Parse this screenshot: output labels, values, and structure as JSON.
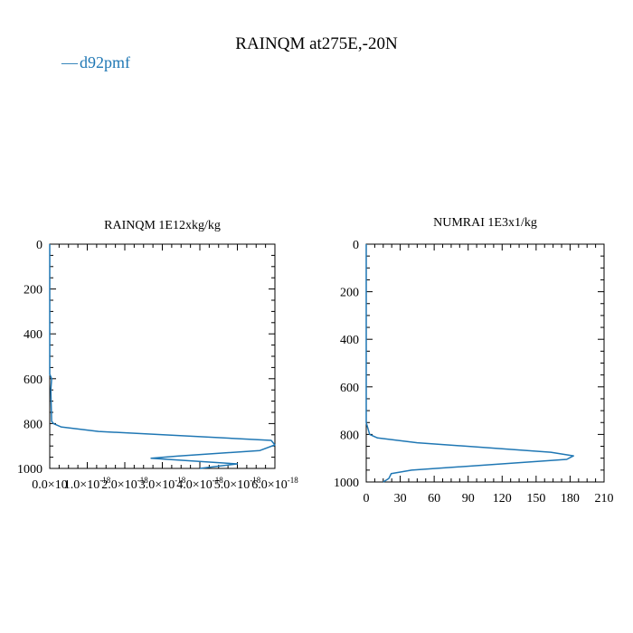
{
  "page": {
    "title": "RAINQM at275E,-20N"
  },
  "legend": {
    "entries": [
      {
        "marker": "—",
        "label": "d92pmf",
        "color": "#1f77b4"
      }
    ],
    "placement": "top-left"
  },
  "colors": {
    "series": "#1f77b4",
    "axis": "#000000",
    "text": "#000000"
  },
  "chart_data": [
    {
      "type": "line",
      "title": "RAINQM  1E12xkg/kg",
      "xlabel": "",
      "ylabel": "",
      "xlim": [
        0,
        6e-18
      ],
      "ylim": [
        1000,
        0
      ],
      "y_inverted": true,
      "grid": false,
      "x_tick_labels": [
        "0.0×10",
        "1.0×10",
        "2.0×10",
        "3.0×10",
        "4.0×10",
        "5.0×10",
        "6.0×10"
      ],
      "x_tick_exponents": [
        "",
        "-18",
        "-18",
        "-18",
        "-18",
        "-18",
        "-18"
      ],
      "x_ticks": [
        0,
        1e-18,
        2e-18,
        3e-18,
        4e-18,
        5e-18,
        6e-18
      ],
      "y_ticks": [
        0,
        200,
        400,
        600,
        800,
        1000
      ],
      "y_tick_labels": [
        "0",
        "200",
        "400",
        "600",
        "800",
        "1000"
      ],
      "series": [
        {
          "name": "d92pmf",
          "color": "#1f77b4",
          "x": [
            0,
            0,
            5e-20,
            3e-20,
            5e-20,
            1e-19,
            3e-19,
            1.3e-18,
            5.9e-18,
            6e-18,
            5.6e-18,
            3.4e-18,
            2.7e-18,
            5e-18,
            4e-18
          ],
          "y": [
            0,
            580,
            600,
            650,
            790,
            800,
            815,
            835,
            875,
            895,
            920,
            945,
            955,
            980,
            1000
          ]
        }
      ]
    },
    {
      "type": "line",
      "title": "NUMRAI  1E3x1/kg",
      "xlabel": "",
      "ylabel": "",
      "xlim": [
        0,
        210
      ],
      "ylim": [
        1000,
        0
      ],
      "y_inverted": true,
      "grid": false,
      "x_ticks": [
        0,
        30,
        60,
        90,
        120,
        150,
        180,
        210
      ],
      "x_tick_labels": [
        "0",
        "30",
        "60",
        "90",
        "120",
        "150",
        "180",
        "210"
      ],
      "y_ticks": [
        0,
        200,
        400,
        600,
        800,
        1000
      ],
      "y_tick_labels": [
        "0",
        "200",
        "400",
        "600",
        "800",
        "1000"
      ],
      "series": [
        {
          "name": "d92pmf",
          "color": "#1f77b4",
          "x": [
            0,
            0,
            3,
            10,
            45,
            163,
            183,
            177,
            40,
            22,
            20,
            15
          ],
          "y": [
            0,
            750,
            800,
            815,
            835,
            875,
            890,
            905,
            950,
            965,
            985,
            1000
          ]
        }
      ]
    }
  ]
}
